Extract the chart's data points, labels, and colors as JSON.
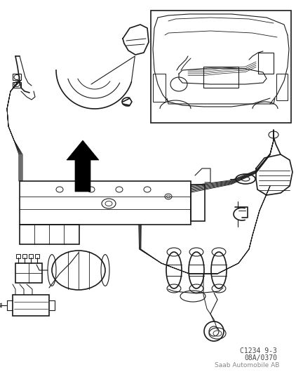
{
  "background_color": "#ffffff",
  "line_color": "#1a1a1a",
  "footer_line1": "C1234 9-3",
  "footer_line2": "08A/0370",
  "footer_line3": "Saab Automobile AB",
  "fig_width": 4.22,
  "fig_height": 5.3,
  "dpi": 100
}
